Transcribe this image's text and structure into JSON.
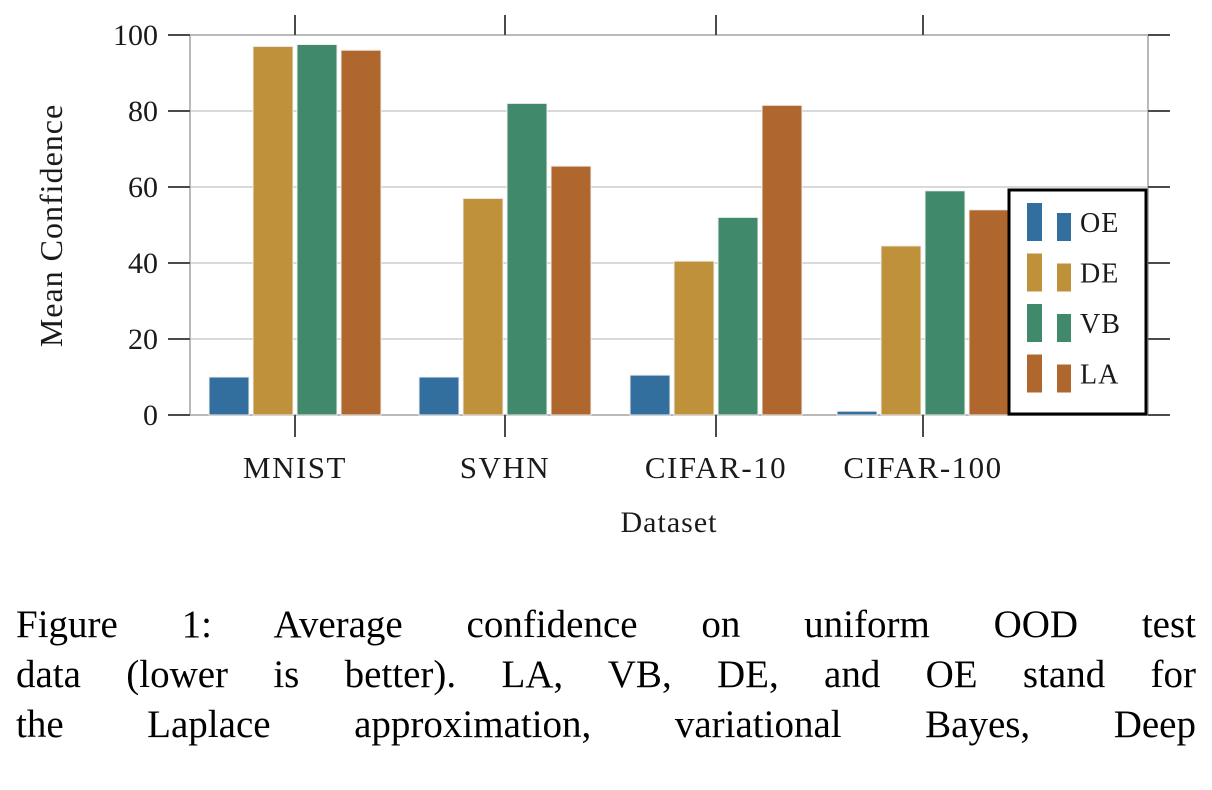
{
  "figure": {
    "caption_lines": [
      "Figure 1:  Average confidence on uniform OOD test",
      "data (lower is better). LA, VB, DE, and OE stand for",
      "the Laplace approximation, variational Bayes, Deep"
    ]
  },
  "chart_data": {
    "type": "bar",
    "title": "",
    "xlabel": "Dataset",
    "ylabel": "Mean Confidence",
    "categories": [
      "MNIST",
      "SVHN",
      "CIFAR-10",
      "CIFAR-100"
    ],
    "series": [
      {
        "name": "OE",
        "color": "#336F9E",
        "values": [
          10,
          10,
          10.5,
          1
        ]
      },
      {
        "name": "DE",
        "color": "#C0913B",
        "values": [
          97,
          57,
          40.5,
          44.5
        ]
      },
      {
        "name": "VB",
        "color": "#41896B",
        "values": [
          97.5,
          82,
          52,
          59
        ]
      },
      {
        "name": "LA",
        "color": "#B0672D",
        "values": [
          96,
          65.5,
          81.5,
          54
        ]
      }
    ],
    "ylim": [
      0,
      100
    ],
    "yticks": [
      0,
      20,
      40,
      60,
      80,
      100
    ],
    "grid": "horizontal",
    "legend": {
      "position": "inside lower right",
      "entries": [
        "OE",
        "DE",
        "VB",
        "LA"
      ]
    },
    "colors": {
      "grid_line": "#d9d9d9",
      "axis_frame": "#b9b9b9",
      "tick_mark": "#4a4a4a",
      "legend_border": "#000000",
      "bar_edge": "#f0f0f0",
      "text": "#1a1a1a"
    }
  }
}
